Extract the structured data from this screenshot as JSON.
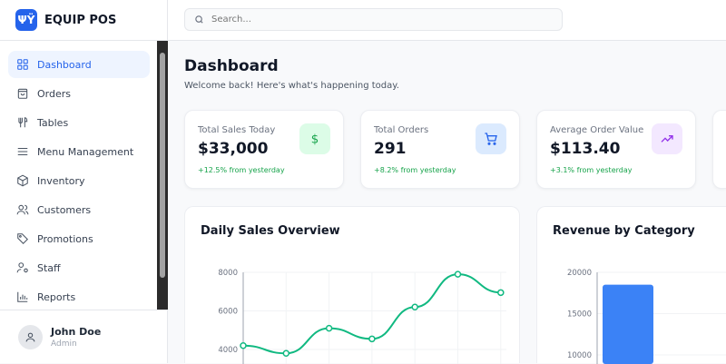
{
  "app": {
    "title": "EQUIP POS"
  },
  "search": {
    "placeholder": "Search..."
  },
  "sidebar": {
    "items": [
      {
        "label": "Dashboard",
        "icon": "grid-icon",
        "active": true
      },
      {
        "label": "Orders",
        "icon": "shopping-bag-icon"
      },
      {
        "label": "Tables",
        "icon": "utensils-icon"
      },
      {
        "label": "Menu Management",
        "icon": "menu-icon"
      },
      {
        "label": "Inventory",
        "icon": "box-icon"
      },
      {
        "label": "Customers",
        "icon": "users-icon"
      },
      {
        "label": "Promotions",
        "icon": "tag-icon"
      },
      {
        "label": "Staff",
        "icon": "staff-icon"
      },
      {
        "label": "Reports",
        "icon": "bar-chart-icon"
      }
    ]
  },
  "user": {
    "name": "John Doe",
    "role": "Admin"
  },
  "page": {
    "title": "Dashboard",
    "subtitle": "Welcome back! Here's what's happening today."
  },
  "stats": [
    {
      "label": "Total Sales Today",
      "value": "$33,000",
      "change": "+12.5% from yesterday",
      "icon": "dollar-icon",
      "icon_bg": "#dcfce7",
      "icon_color": "#16a34a"
    },
    {
      "label": "Total Orders",
      "value": "291",
      "change": "+8.2% from yesterday",
      "icon": "cart-icon",
      "icon_bg": "#dbeafe",
      "icon_color": "#2563eb"
    },
    {
      "label": "Average Order Value",
      "value": "$113.40",
      "change": "+3.1% from yesterday",
      "icon": "trending-up-icon",
      "icon_bg": "#f3e8ff",
      "icon_color": "#9333ea"
    }
  ],
  "chart_data": [
    {
      "type": "line",
      "title": "Daily Sales Overview",
      "y_ticks": [
        4000,
        6000,
        8000
      ],
      "ylim": [
        4000,
        8000
      ],
      "values": [
        4200,
        3800,
        5100,
        4550,
        6200,
        7900,
        6950
      ],
      "color": "#10b981",
      "grid": true
    },
    {
      "type": "bar",
      "title": "Revenue by Category",
      "y_ticks": [
        10000,
        15000,
        20000
      ],
      "ylim": [
        10000,
        20000
      ],
      "values": [
        18500
      ],
      "color": "#3b82f6",
      "grid": true
    }
  ]
}
